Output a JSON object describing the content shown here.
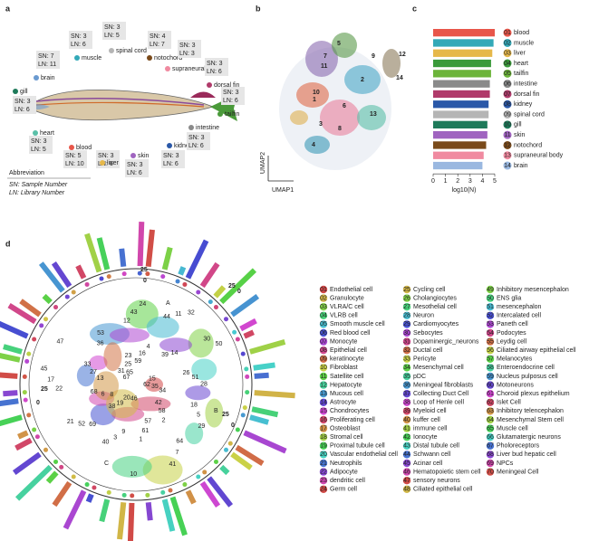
{
  "panel_labels": {
    "a": "a",
    "b": "b",
    "c": "c",
    "d": "d"
  },
  "panel_a": {
    "tissues": [
      {
        "name": "brain",
        "sn": "SN: 7",
        "ln": "LN: 11"
      },
      {
        "name": "muscle",
        "sn": "SN: 3",
        "ln": "LN: 6"
      },
      {
        "name": "spinal cord",
        "sn": "SN: 3",
        "ln": "LN: 5"
      },
      {
        "name": "notochord",
        "sn": "SN: 4",
        "ln": "LN: 7"
      },
      {
        "name": "supraneural body",
        "sn": "SN: 3",
        "ln": "LN: 3"
      },
      {
        "name": "dorsal fin",
        "sn": "SN: 3",
        "ln": "LN: 6"
      },
      {
        "name": "tailfin",
        "sn": "SN: 3",
        "ln": "LN: 6"
      },
      {
        "name": "gill",
        "sn": "SN: 3",
        "ln": "LN: 6"
      },
      {
        "name": "heart",
        "sn": "SN: 3",
        "ln": "LN: 5"
      },
      {
        "name": "blood",
        "sn": "SN: 5",
        "ln": "LN: 10"
      },
      {
        "name": "liver",
        "sn": "SN: 3",
        "ln": "LN: 6"
      },
      {
        "name": "skin",
        "sn": "SN: 3",
        "ln": "LN: 6"
      },
      {
        "name": "kidney",
        "sn": "SN: 3",
        "ln": "LN: 6"
      },
      {
        "name": "intestine",
        "sn": "SN: 3",
        "ln": "LN: 6"
      }
    ],
    "abbreviation": "Abbreviation",
    "sn_note": "SN: Sample Number",
    "ln_note": "LN: Library Number"
  },
  "panel_b": {
    "x_label": "UMAP1",
    "y_label": "UMAP2",
    "clusters": [
      "1",
      "2",
      "3",
      "4",
      "5",
      "6",
      "7",
      "8",
      "9",
      "10",
      "11",
      "12",
      "13",
      "14"
    ]
  },
  "chart_data": {
    "type": "bar",
    "orientation": "horizontal",
    "x_label": "log10(N)",
    "codes": [
      "01",
      "02",
      "03",
      "04",
      "05",
      "06",
      "07",
      "08",
      "09",
      "10",
      "11",
      "12",
      "13",
      "14"
    ],
    "categories": [
      "blood",
      "muscle",
      "liver",
      "heart",
      "tailfin",
      "intestine",
      "dorsal fin",
      "kidney",
      "spinal cord",
      "gill",
      "skin",
      "notochord",
      "supraneural body",
      "brain"
    ],
    "values": [
      5.0,
      4.9,
      4.8,
      4.7,
      4.7,
      4.6,
      4.6,
      4.5,
      4.5,
      4.4,
      4.4,
      4.3,
      4.1,
      4.0
    ],
    "colors": [
      "#e8564a",
      "#33a9b8",
      "#e6b84a",
      "#3a9a3a",
      "#6cb43a",
      "#8a8a8a",
      "#b03a6a",
      "#2a58a8",
      "#b5b5b5",
      "#1e7a5a",
      "#a064c0",
      "#7a4a1a",
      "#f08aa0",
      "#9ab8e0"
    ],
    "xlim": [
      0,
      5
    ],
    "xticks": [
      0,
      1,
      2,
      3,
      4,
      5
    ]
  },
  "panel_d": {
    "ring_labels": [
      "25",
      "0",
      "25",
      "0",
      "25",
      "0",
      "25",
      "0"
    ],
    "sector_labels": [
      "A",
      "B",
      "C"
    ],
    "cluster_labels": [
      "62",
      "69",
      "59",
      "64",
      "13",
      "30",
      "9",
      "65",
      "18",
      "8",
      "44",
      "57",
      "47",
      "26",
      "20",
      "12",
      "42",
      "22",
      "39",
      "10",
      "36",
      "35",
      "52",
      "16",
      "7",
      "27",
      "50",
      "3",
      "25",
      "5",
      "6",
      "11",
      "61",
      "67",
      "51",
      "19",
      "43",
      "58",
      "17",
      "14",
      "46",
      "53",
      "34",
      "21",
      "4",
      "41",
      "33",
      "15",
      "40",
      "23",
      "29",
      "68",
      "32",
      "1",
      "31",
      "28",
      "38",
      "24",
      "2",
      "45"
    ],
    "legend": [
      {
        "code": "01",
        "name": "Endothelial cell"
      },
      {
        "code": "02",
        "name": "Granulocyte"
      },
      {
        "code": "03",
        "name": "VLRA/C cell"
      },
      {
        "code": "04",
        "name": "VLRB cell"
      },
      {
        "code": "05",
        "name": "Smooth muscle cell"
      },
      {
        "code": "06",
        "name": "Red blood cell"
      },
      {
        "code": "07",
        "name": "Monocyte"
      },
      {
        "code": "08",
        "name": "Epithelial cell"
      },
      {
        "code": "09",
        "name": "keratinocyte"
      },
      {
        "code": "10",
        "name": "Fibroblast"
      },
      {
        "code": "11",
        "name": "Satellite cell"
      },
      {
        "code": "12",
        "name": "Hepatocyte"
      },
      {
        "code": "13",
        "name": "Mucous cell"
      },
      {
        "code": "14",
        "name": "Astrocyte"
      },
      {
        "code": "15",
        "name": "Chondrocytes"
      },
      {
        "code": "16",
        "name": "Proliferating cell"
      },
      {
        "code": "17",
        "name": "Osteoblast"
      },
      {
        "code": "18",
        "name": "Stromal cell"
      },
      {
        "code": "19",
        "name": "Proximal tubule cell"
      },
      {
        "code": "20",
        "name": "Vascular endothelial cell"
      },
      {
        "code": "21",
        "name": "Neutrophils"
      },
      {
        "code": "22",
        "name": "Adipocyte"
      },
      {
        "code": "23",
        "name": "dendritic cell"
      },
      {
        "code": "24",
        "name": "Germ cell"
      },
      {
        "code": "25",
        "name": "Cycling cell"
      },
      {
        "code": "26",
        "name": "Cholangiocytes"
      },
      {
        "code": "27",
        "name": "Mesothelial cell"
      },
      {
        "code": "28",
        "name": "Neuron"
      },
      {
        "code": "29",
        "name": "Cardiomyocytes"
      },
      {
        "code": "30",
        "name": "Sebocytes"
      },
      {
        "code": "31",
        "name": "Dopaminergic_neurons"
      },
      {
        "code": "32",
        "name": "Ductal cell"
      },
      {
        "code": "33",
        "name": "Pericyte"
      },
      {
        "code": "34",
        "name": "Mesenchymal cell"
      },
      {
        "code": "35",
        "name": "pDC"
      },
      {
        "code": "36",
        "name": "Meningeal fibroblasts"
      },
      {
        "code": "37",
        "name": "Collecting Duct Cell"
      },
      {
        "code": "38",
        "name": "Loop of Henle cell"
      },
      {
        "code": "39",
        "name": "Myeloid cell"
      },
      {
        "code": "40",
        "name": "kuffer cell"
      },
      {
        "code": "41",
        "name": "immune cell"
      },
      {
        "code": "42",
        "name": "Ionocyte"
      },
      {
        "code": "43",
        "name": "Distal tubule cell"
      },
      {
        "code": "44",
        "name": "Schwann cell"
      },
      {
        "code": "45",
        "name": "Acinar cell"
      },
      {
        "code": "46",
        "name": "Hematopoietic stem cell"
      },
      {
        "code": "47",
        "name": "sensory neurons"
      },
      {
        "code": "48",
        "name": "Ciliated epithelial cell"
      },
      {
        "code": "49",
        "name": "Inhibitory mesencephalon"
      },
      {
        "code": "50",
        "name": "ENS glia"
      },
      {
        "code": "51",
        "name": "mesencephalon"
      },
      {
        "code": "52",
        "name": "Intercalated cell"
      },
      {
        "code": "53",
        "name": "Paneth cell"
      },
      {
        "code": "54",
        "name": "Podocytes"
      },
      {
        "code": "55",
        "name": "Leydig cell"
      },
      {
        "code": "56",
        "name": "Ciliated airway epithelial cell"
      },
      {
        "code": "57",
        "name": "Melanocytes"
      },
      {
        "code": "58",
        "name": "Enteroendocrine cell"
      },
      {
        "code": "59",
        "name": "Nucleus pulposus cell"
      },
      {
        "code": "60",
        "name": "Motoneurons"
      },
      {
        "code": "61",
        "name": "Choroid plexus epithelium"
      },
      {
        "code": "62",
        "name": "Islet Cell"
      },
      {
        "code": "63",
        "name": "Inhibitory telencephalon"
      },
      {
        "code": "64",
        "name": "Mesenchymal Stem cell"
      },
      {
        "code": "65",
        "name": "Muscle cell"
      },
      {
        "code": "66",
        "name": "Glutamatergic neurons"
      },
      {
        "code": "67",
        "name": "Pholoreceptors"
      },
      {
        "code": "68",
        "name": "Liver bud hepatic cell"
      },
      {
        "code": "69",
        "name": "NPCs"
      },
      {
        "code": "70",
        "name": "Meningeal Cell"
      }
    ]
  }
}
